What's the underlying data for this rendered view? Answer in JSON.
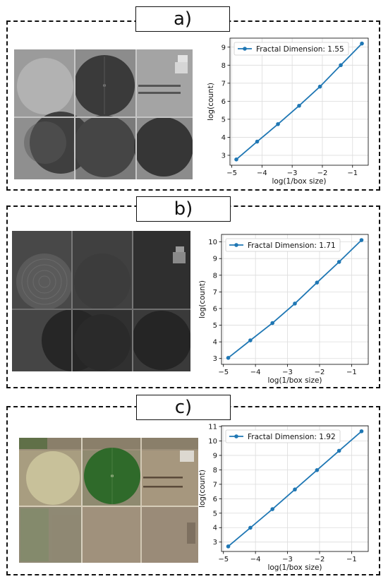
{
  "panels": [
    {
      "label": "a)",
      "image": {
        "description_icon": "satellite-image-grayscale-center-pivot-fields",
        "tone": "light-gray"
      },
      "chart_data": {
        "type": "line",
        "xlabel": "log(1/box size)",
        "ylabel": "log(count)",
        "legend": "Fractal Dimension: 1.55",
        "legend_position": "top-left",
        "grid": true,
        "color": "#1f77b4",
        "x": [
          -4.85,
          -4.16,
          -3.47,
          -2.77,
          -2.08,
          -1.39,
          -0.69
        ],
        "y": [
          2.77,
          3.76,
          4.73,
          5.75,
          6.81,
          8.0,
          9.2
        ],
        "xlim": [
          -5.06,
          -0.48
        ],
        "ylim": [
          2.45,
          9.5
        ],
        "xticks": [
          -5,
          -4,
          -3,
          -2,
          -1
        ],
        "yticks": [
          3,
          4,
          5,
          6,
          7,
          8,
          9
        ]
      }
    },
    {
      "label": "b)",
      "image": {
        "description_icon": "satellite-image-grayscale-dark-fields",
        "tone": "dark-gray"
      },
      "chart_data": {
        "type": "line",
        "xlabel": "log(1/box size)",
        "ylabel": "log(count)",
        "legend": "Fractal Dimension: 1.71",
        "legend_position": "top-left",
        "grid": true,
        "color": "#1f77b4",
        "x": [
          -4.85,
          -4.16,
          -3.47,
          -2.77,
          -2.08,
          -1.39,
          -0.69
        ],
        "y": [
          3.04,
          4.09,
          5.13,
          6.3,
          7.56,
          8.8,
          10.11
        ],
        "xlim": [
          -5.06,
          -0.48
        ],
        "ylim": [
          2.65,
          10.45
        ],
        "xticks": [
          -5,
          -4,
          -3,
          -2,
          -1
        ],
        "yticks": [
          3,
          4,
          5,
          6,
          7,
          8,
          9,
          10
        ]
      }
    },
    {
      "label": "c)",
      "image": {
        "description_icon": "satellite-image-color-center-pivot-fields",
        "tone": "color"
      },
      "chart_data": {
        "type": "line",
        "xlabel": "log(1/box size)",
        "ylabel": "log(count)",
        "legend": "Fractal Dimension: 1.92",
        "legend_position": "top-left",
        "grid": true,
        "color": "#1f77b4",
        "x": [
          -4.85,
          -4.16,
          -3.47,
          -2.77,
          -2.08,
          -1.39,
          -0.69
        ],
        "y": [
          2.7,
          3.99,
          5.28,
          6.64,
          7.98,
          9.32,
          10.67
        ],
        "xlim": [
          -5.06,
          -0.48
        ],
        "ylim": [
          2.35,
          11.05
        ],
        "xticks": [
          -5,
          -4,
          -3,
          -2,
          -1
        ],
        "yticks": [
          3,
          4,
          5,
          6,
          7,
          8,
          9,
          10,
          11
        ]
      }
    }
  ]
}
